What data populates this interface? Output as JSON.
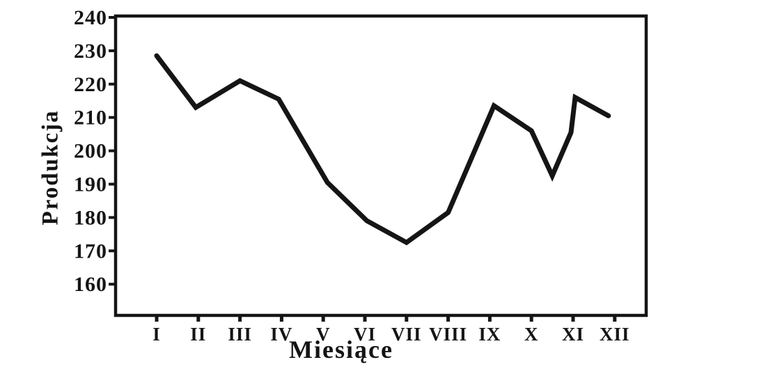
{
  "chart_data": {
    "type": "line",
    "title": "",
    "xlabel": "Miesiące",
    "ylabel": "Produkcja",
    "categories": [
      "I",
      "II",
      "III",
      "IV",
      "V",
      "VI",
      "VII",
      "VIII",
      "IX",
      "X",
      "XI",
      "XII"
    ],
    "values_by_month": [
      228,
      213,
      221,
      216,
      190,
      179,
      172,
      181,
      213,
      206,
      216,
      210
    ],
    "y_ticks": [
      240,
      230,
      220,
      210,
      200,
      190,
      180,
      170,
      160
    ],
    "ylim": [
      150,
      240
    ],
    "grid": "off",
    "legend": "none",
    "series": [
      {
        "name": "Produkcja",
        "drawn_points": [
          [
            1.0,
            228.5
          ],
          [
            1.94,
            213.0
          ],
          [
            3.0,
            221.0
          ],
          [
            3.93,
            215.5
          ],
          [
            5.1,
            190.5
          ],
          [
            6.05,
            179.0
          ],
          [
            7.0,
            172.5
          ],
          [
            8.0,
            181.5
          ],
          [
            9.1,
            213.5
          ],
          [
            10.0,
            206.0
          ],
          [
            10.5,
            192.5
          ],
          [
            10.95,
            205.5
          ],
          [
            11.05,
            216.0
          ],
          [
            11.85,
            210.5
          ]
        ]
      }
    ],
    "colors": {
      "ink": "#151515",
      "background": "#ffffff"
    }
  }
}
